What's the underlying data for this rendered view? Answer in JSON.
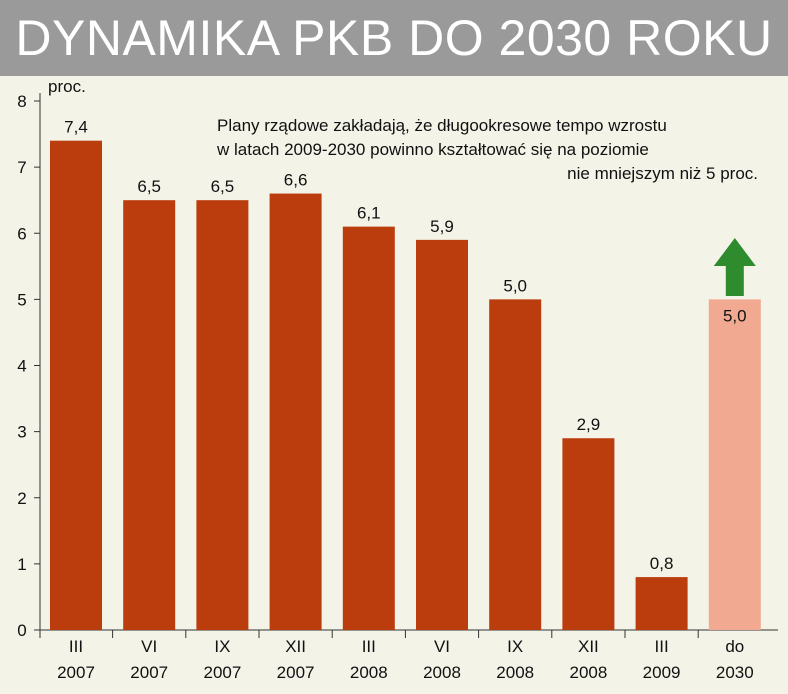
{
  "title": "DYNAMIKA PKB DO 2030 ROKU",
  "chart_data": {
    "type": "bar",
    "ylabel": "proc.",
    "ylim": [
      0,
      8
    ],
    "yticks": [
      0,
      1,
      2,
      3,
      4,
      5,
      6,
      7,
      8
    ],
    "annotation": [
      "Plany rządowe zakładają, że długookresowe tempo wzrostu",
      "w latach 2009-2030 powinno kształtować się na poziomie",
      "nie mniejszym niż 5 proc."
    ],
    "categories": [
      [
        "III",
        "2007"
      ],
      [
        "VI",
        "2007"
      ],
      [
        "IX",
        "2007"
      ],
      [
        "XII",
        "2007"
      ],
      [
        "III",
        "2008"
      ],
      [
        "VI",
        "2008"
      ],
      [
        "IX",
        "2008"
      ],
      [
        "XII",
        "2008"
      ],
      [
        "III",
        "2009"
      ],
      [
        "do",
        "2030"
      ]
    ],
    "values": [
      7.4,
      6.5,
      6.5,
      6.6,
      6.1,
      5.9,
      5.0,
      2.9,
      0.8,
      5.0
    ],
    "value_labels": [
      "7,4",
      "6,5",
      "6,5",
      "6,6",
      "6,1",
      "5,9",
      "5,0",
      "2,9",
      "0,8",
      "5,0"
    ],
    "projected": [
      false,
      false,
      false,
      false,
      false,
      false,
      false,
      false,
      false,
      true
    ],
    "grid": false,
    "colors": {
      "bar": "#bb3c0c",
      "projected_bar": "#f2a992",
      "arrow": "#2e8b2e",
      "axis": "#333333",
      "title_bg": "#9a9a9a",
      "background": "#f3f3e8"
    }
  }
}
